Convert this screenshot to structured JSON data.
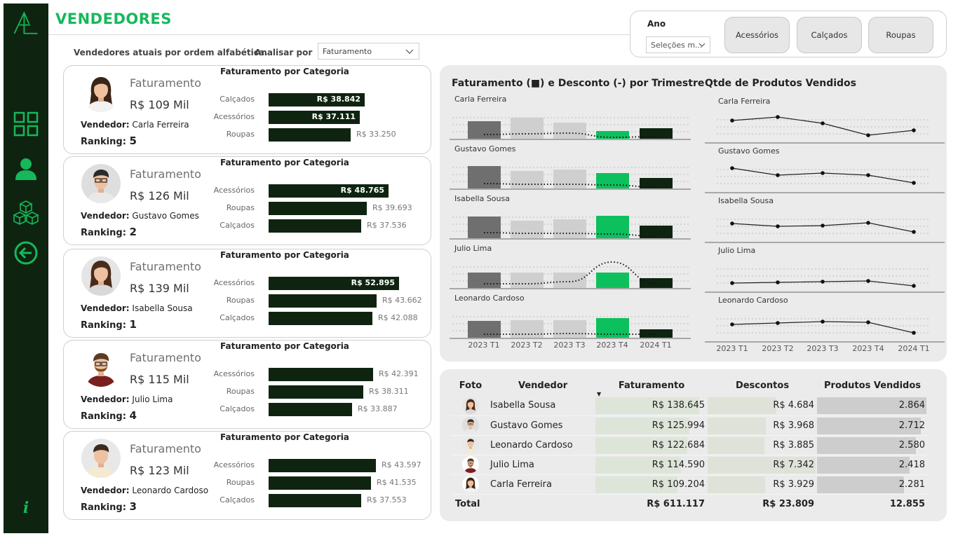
{
  "header": {
    "title": "VENDEDORES",
    "subtitle": "Vendedores atuais por ordem alfabética.",
    "analisar_label": "Analisar por",
    "analisar_value": "Faturamento"
  },
  "filters": {
    "ano_label": "Ano",
    "ano_value": "Seleções m...",
    "buttons": [
      "Acessórios",
      "Calçados",
      "Roupas"
    ]
  },
  "nav": [
    "dashboard-icon",
    "user-icon",
    "boxes-icon",
    "back-arrow-icon",
    "info-icon"
  ],
  "cards": [
    {
      "fat_label": "Faturamento",
      "fat_value": "R$ 109 Mil",
      "vendedor_label": "Vendedor:",
      "vendedor": "Carla Ferreira",
      "ranking_label": "Ranking:",
      "ranking": "5",
      "cat_title": "Faturamento por Categoria",
      "cats": [
        {
          "name": "Calçados",
          "value": "R$ 38.842",
          "amount": 38842
        },
        {
          "name": "Acessórios",
          "value": "R$ 37.111",
          "amount": 37111
        },
        {
          "name": "Roupas",
          "value": "R$ 33.250",
          "amount": 33250
        }
      ]
    },
    {
      "fat_label": "Faturamento",
      "fat_value": "R$ 126 Mil",
      "vendedor_label": "Vendedor:",
      "vendedor": "Gustavo Gomes",
      "ranking_label": "Ranking:",
      "ranking": "2",
      "cat_title": "Faturamento por Categoria",
      "cats": [
        {
          "name": "Acessórios",
          "value": "R$ 48.765",
          "amount": 48765
        },
        {
          "name": "Roupas",
          "value": "R$ 39.693",
          "amount": 39693
        },
        {
          "name": "Calçados",
          "value": "R$ 37.536",
          "amount": 37536
        }
      ]
    },
    {
      "fat_label": "Faturamento",
      "fat_value": "R$ 139 Mil",
      "vendedor_label": "Vendedor:",
      "vendedor": "Isabella Sousa",
      "ranking_label": "Ranking:",
      "ranking": "1",
      "cat_title": "Faturamento por Categoria",
      "cats": [
        {
          "name": "Acessórios",
          "value": "R$ 52.895",
          "amount": 52895
        },
        {
          "name": "Roupas",
          "value": "R$ 43.662",
          "amount": 43662
        },
        {
          "name": "Calçados",
          "value": "R$ 42.088",
          "amount": 42088
        }
      ]
    },
    {
      "fat_label": "Faturamento",
      "fat_value": "R$ 115 Mil",
      "vendedor_label": "Vendedor:",
      "vendedor": "Julio Lima",
      "ranking_label": "Ranking:",
      "ranking": "4",
      "cat_title": "Faturamento por Categoria",
      "cats": [
        {
          "name": "Acessórios",
          "value": "R$ 42.391",
          "amount": 42391
        },
        {
          "name": "Roupas",
          "value": "R$ 38.311",
          "amount": 38311
        },
        {
          "name": "Calçados",
          "value": "R$ 33.887",
          "amount": 33887
        }
      ]
    },
    {
      "fat_label": "Faturamento",
      "fat_value": "R$ 123 Mil",
      "vendedor_label": "Vendedor:",
      "vendedor": "Leonardo Cardoso",
      "ranking_label": "Ranking:",
      "ranking": "3",
      "cat_title": "Faturamento por Categoria",
      "cats": [
        {
          "name": "Acessórios",
          "value": "R$ 43.597",
          "amount": 43597
        },
        {
          "name": "Roupas",
          "value": "R$ 41.535",
          "amount": 41535
        },
        {
          "name": "Calçados",
          "value": "R$ 37.553",
          "amount": 37553
        }
      ]
    }
  ],
  "chart_data": [
    {
      "type": "bar",
      "title": "Faturamento (■) e Desconto (-) por Trimestre",
      "categories": [
        "2023 T1",
        "2023 T2",
        "2023 T3",
        "2023 T4",
        "2024 T1"
      ],
      "series": [
        {
          "name": "Carla Ferreira",
          "values": [
            25,
            30,
            23,
            11,
            15
          ],
          "discount": [
            6,
            7,
            8,
            2,
            3
          ]
        },
        {
          "name": "Gustavo Gomes",
          "values": [
            32,
            25,
            27,
            22,
            15
          ],
          "discount": [
            7,
            6,
            6,
            5,
            2
          ]
        },
        {
          "name": "Isabella Sousa",
          "values": [
            31,
            25,
            27,
            32,
            18
          ],
          "discount": [
            8,
            7,
            7,
            6,
            3
          ]
        },
        {
          "name": "Julio Lima",
          "values": [
            22,
            22,
            22,
            22,
            14
          ],
          "discount": [
            6,
            6,
            9,
            37,
            6
          ]
        },
        {
          "name": "Leonardo Cardoso",
          "values": [
            24,
            25,
            25,
            28,
            12
          ],
          "discount": [
            5,
            5,
            6,
            5,
            5
          ]
        }
      ]
    },
    {
      "type": "line",
      "title": "Qtde de Produtos Vendidos",
      "categories": [
        "2023 T1",
        "2023 T2",
        "2023 T3",
        "2023 T4",
        "2024 T1"
      ],
      "series": [
        {
          "name": "Carla Ferreira",
          "values": [
            650,
            700,
            610,
            440,
            510
          ]
        },
        {
          "name": "Gustavo Gomes",
          "values": [
            680,
            580,
            610,
            580,
            470
          ]
        },
        {
          "name": "Isabella Sousa",
          "values": [
            600,
            560,
            570,
            610,
            480
          ]
        },
        {
          "name": "Julio Lima",
          "values": [
            460,
            470,
            480,
            490,
            420
          ]
        },
        {
          "name": "Leonardo Cardoso",
          "values": [
            580,
            600,
            620,
            610,
            460
          ]
        }
      ]
    }
  ],
  "table": {
    "headers": [
      "Foto",
      "Vendedor",
      "Faturamento",
      "Descontos",
      "Produtos Vendidos"
    ],
    "rows": [
      {
        "vendedor": "Isabella Sousa",
        "faturamento": "R$ 138.645",
        "fat_amount": 138645,
        "descontos": "R$ 4.684",
        "desc_amount": 4684,
        "produtos": "2.864",
        "prod_amount": 2864
      },
      {
        "vendedor": "Gustavo Gomes",
        "faturamento": "R$ 125.994",
        "fat_amount": 125994,
        "descontos": "R$ 3.968",
        "desc_amount": 3968,
        "produtos": "2.712",
        "prod_amount": 2712
      },
      {
        "vendedor": "Leonardo Cardoso",
        "faturamento": "R$ 122.684",
        "fat_amount": 122684,
        "descontos": "R$ 3.885",
        "desc_amount": 3885,
        "produtos": "2.580",
        "prod_amount": 2580
      },
      {
        "vendedor": "Julio Lima",
        "faturamento": "R$ 114.590",
        "fat_amount": 114590,
        "descontos": "R$ 7.342",
        "desc_amount": 7342,
        "produtos": "2.418",
        "prod_amount": 2418
      },
      {
        "vendedor": "Carla Ferreira",
        "faturamento": "R$ 109.204",
        "fat_amount": 109204,
        "descontos": "R$ 3.929",
        "desc_amount": 3929,
        "produtos": "2.281",
        "prod_amount": 2281
      }
    ],
    "total": {
      "label": "Total",
      "faturamento": "R$ 611.117",
      "descontos": "R$ 23.809",
      "produtos": "12.855"
    }
  },
  "colors": {
    "dark": "#0e2410",
    "accent": "#16b85b",
    "bar_gray_dark": "#6f6f6f",
    "bar_gray_light": "#cfcfcf",
    "bar_green": "#0dc05e"
  }
}
